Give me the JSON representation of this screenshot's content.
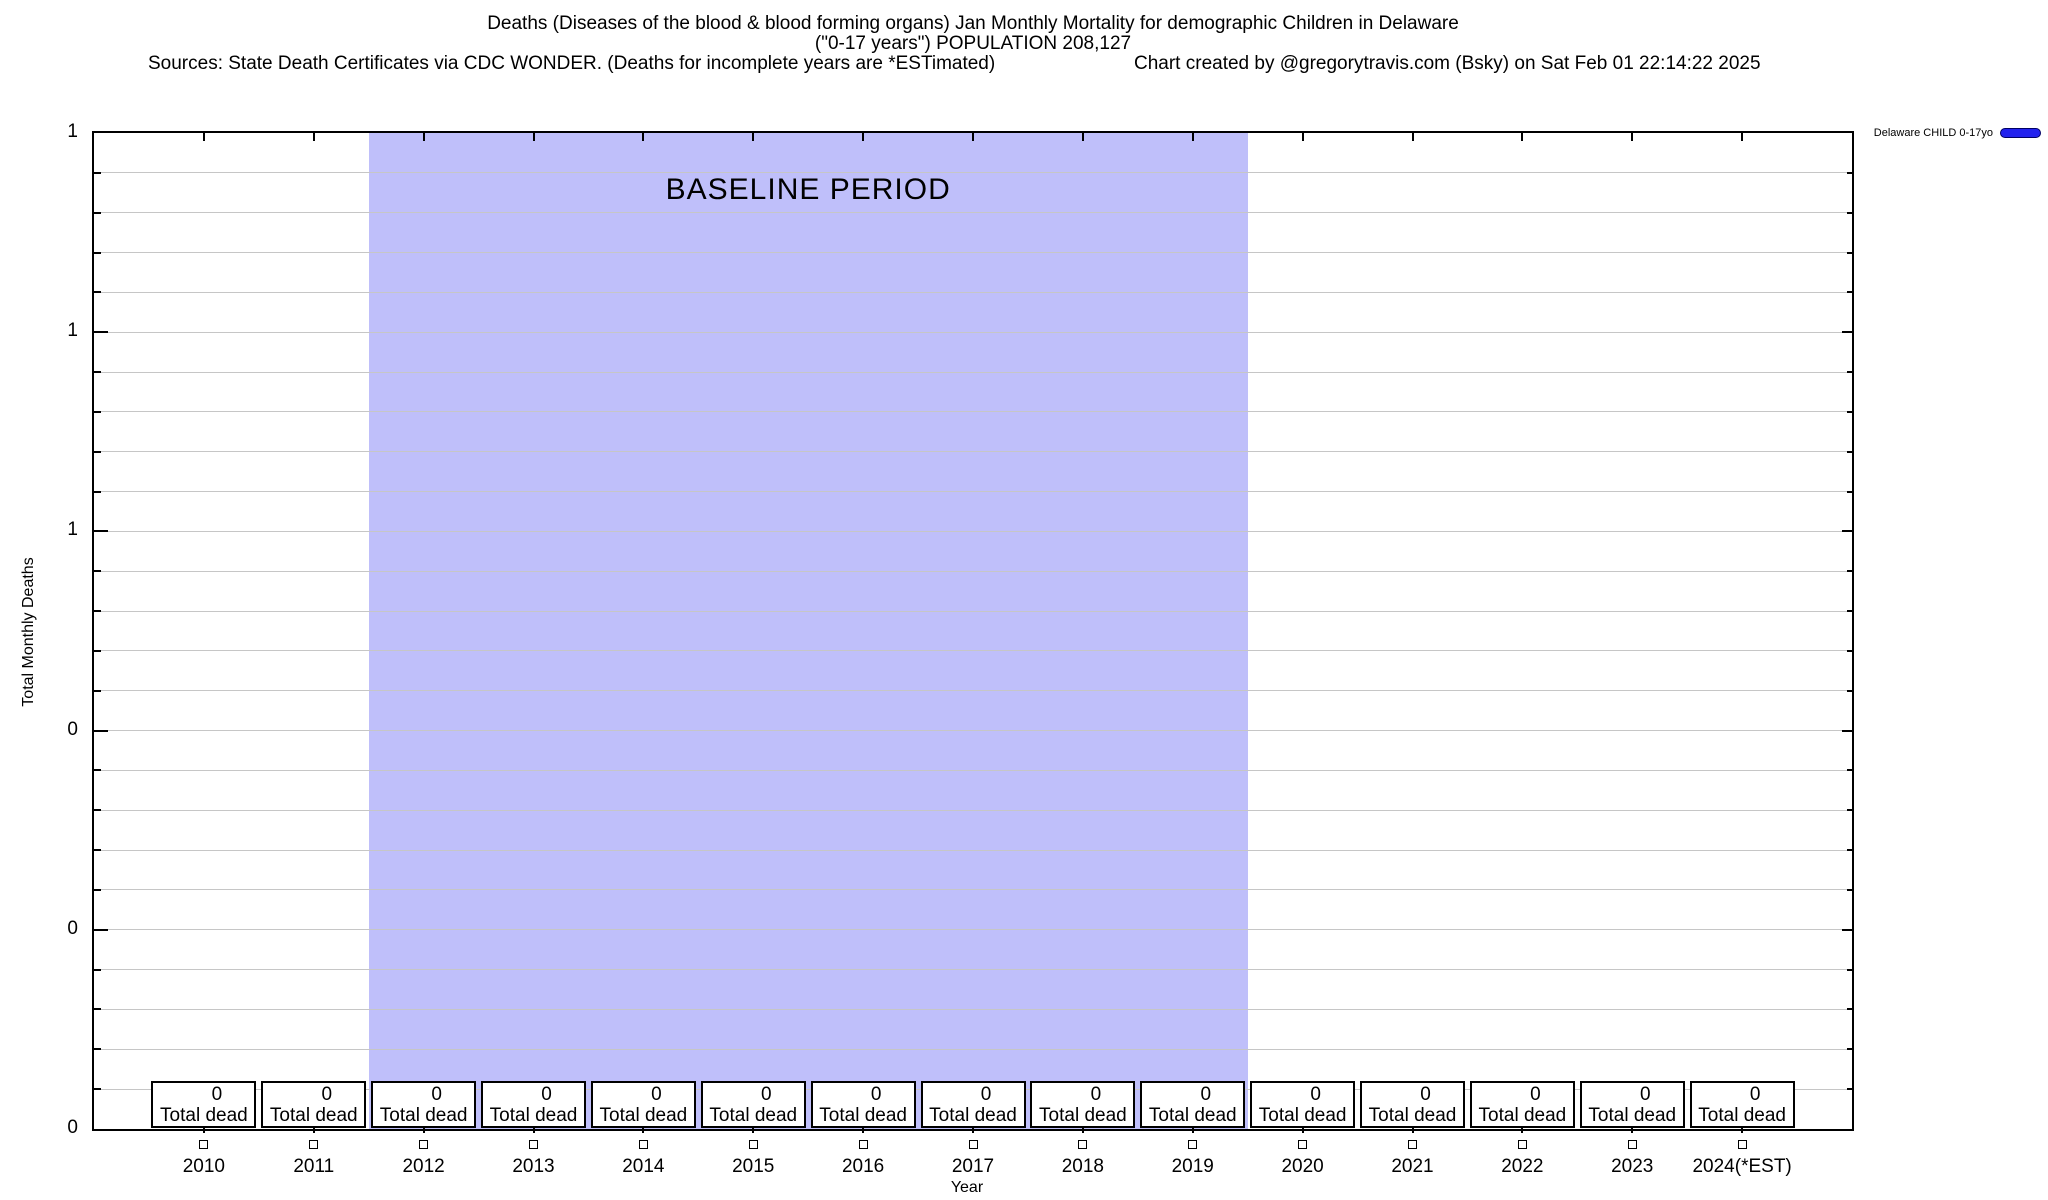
{
  "header": {
    "title_line1": "Deaths (Diseases of the blood & blood forming organs) Jan Monthly Mortality for demographic Children in Delaware",
    "title_line2": "(\"0-17 years\") POPULATION 208,127",
    "sources": "Sources: State Death Certificates via CDC WONDER. (Deaths for incomplete years are *ESTimated)",
    "credit": "Chart created by @gregorytravis.com (Bsky) on Sat Feb 01 22:14:22 2025"
  },
  "legend": {
    "label": "Delaware CHILD 0-17yo",
    "swatch_color": "#2222ee"
  },
  "axes": {
    "y_label": "Total Monthly Deaths",
    "x_label": "Year",
    "y_tick_labels": [
      "1",
      "1",
      "1",
      "0",
      "0",
      "0"
    ]
  },
  "baseline_region": {
    "label": "BASELINE PERIOD",
    "color": "#bfbffa",
    "x_start": 2011.5,
    "x_end": 2019.5
  },
  "years": [
    {
      "year": "2010",
      "value": "0",
      "caption": "Total dead"
    },
    {
      "year": "2011",
      "value": "0",
      "caption": "Total dead"
    },
    {
      "year": "2012",
      "value": "0",
      "caption": "Total dead"
    },
    {
      "year": "2013",
      "value": "0",
      "caption": "Total dead"
    },
    {
      "year": "2014",
      "value": "0",
      "caption": "Total dead"
    },
    {
      "year": "2015",
      "value": "0",
      "caption": "Total dead"
    },
    {
      "year": "2016",
      "value": "0",
      "caption": "Total dead"
    },
    {
      "year": "2017",
      "value": "0",
      "caption": "Total dead"
    },
    {
      "year": "2018",
      "value": "0",
      "caption": "Total dead"
    },
    {
      "year": "2019",
      "value": "0",
      "caption": "Total dead"
    },
    {
      "year": "2020",
      "value": "0",
      "caption": "Total dead"
    },
    {
      "year": "2021",
      "value": "0",
      "caption": "Total dead"
    },
    {
      "year": "2022",
      "value": "0",
      "caption": "Total dead"
    },
    {
      "year": "2023",
      "value": "0",
      "caption": "Total dead"
    },
    {
      "year": "2024(*EST)",
      "value": "0",
      "caption": "Total dead"
    }
  ],
  "chart_data": {
    "type": "line",
    "title": "Deaths (Diseases of the blood & blood forming organs) Jan Monthly Mortality for demographic Children in Delaware (\"0-17 years\") POPULATION 208,127",
    "xlabel": "Year",
    "ylabel": "Total Monthly Deaths",
    "x": [
      2010,
      2011,
      2012,
      2013,
      2014,
      2015,
      2016,
      2017,
      2018,
      2019,
      2020,
      2021,
      2022,
      2023,
      2024
    ],
    "x_tick_labels": [
      "2010",
      "2011",
      "2012",
      "2013",
      "2014",
      "2015",
      "2016",
      "2017",
      "2018",
      "2019",
      "2020",
      "2021",
      "2022",
      "2023",
      "2024(*EST)"
    ],
    "series": [
      {
        "name": "Delaware CHILD 0-17yo",
        "color": "#2222ee",
        "marker": "open-square",
        "values": [
          0,
          0,
          0,
          0,
          0,
          0,
          0,
          0,
          0,
          0,
          0,
          0,
          0,
          0,
          0
        ]
      }
    ],
    "point_labels": [
      "0 Total dead",
      "0 Total dead",
      "0 Total dead",
      "0 Total dead",
      "0 Total dead",
      "0 Total dead",
      "0 Total dead",
      "0 Total dead",
      "0 Total dead",
      "0 Total dead",
      "0 Total dead",
      "0 Total dead",
      "0 Total dead",
      "0 Total dead",
      "0 Total dead"
    ],
    "xlim": [
      2009,
      2025
    ],
    "ylim": [
      0,
      1
    ],
    "y_major_tick_labels_top_to_bottom": [
      "1",
      "1",
      "1",
      "0",
      "0",
      "0"
    ],
    "grid": "horizontal minor gridlines on, vertical off",
    "legend_position": "top-right outside plot",
    "annotations": [
      {
        "type": "vspan",
        "label": "BASELINE PERIOD",
        "x_start": 2011.5,
        "x_end": 2019.5,
        "color": "#bfbffa"
      }
    ]
  }
}
